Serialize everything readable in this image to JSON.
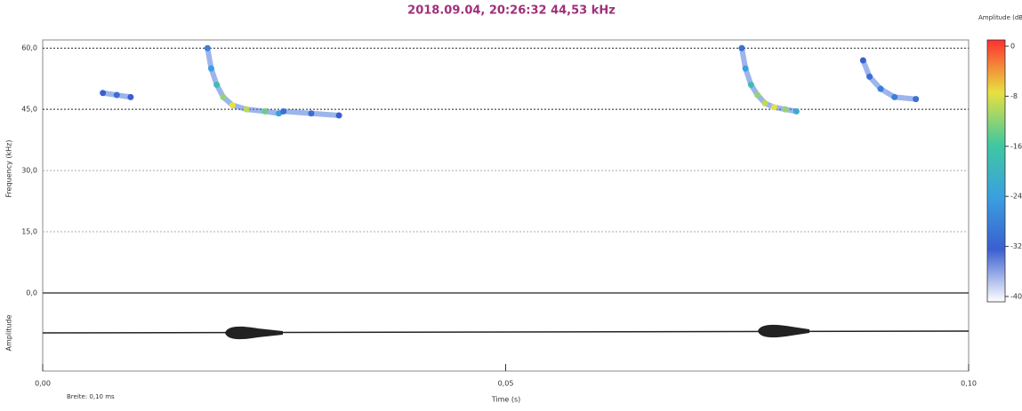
{
  "chart_data": {
    "type": "spectrogram",
    "title": "2018.09.04, 20:26:32 44,53 kHz",
    "x_label": "Time (s)",
    "y_label": "Frequency (kHz)",
    "amplitude_label": "Amplitude",
    "note": "Breite: 0,10 ms",
    "colorbar_label": "Amplitude (dB)",
    "xlim": [
      0,
      0.1
    ],
    "ylim": [
      0,
      62
    ],
    "xticks": [
      {
        "value": 0,
        "label": "0,00"
      },
      {
        "value": 0.05,
        "label": "0,05"
      },
      {
        "value": 0.1,
        "label": "0,10"
      }
    ],
    "yticks": [
      {
        "value": 0,
        "label": "0,0"
      },
      {
        "value": 15,
        "label": "15,0"
      },
      {
        "value": 30,
        "label": "30,0"
      },
      {
        "value": 45,
        "label": "45,0"
      },
      {
        "value": 60,
        "label": "60,0"
      }
    ],
    "clim": [
      -40,
      0
    ],
    "cticks": [
      0,
      -8,
      -16,
      -24,
      -32,
      -40
    ],
    "series": [
      {
        "x": [
          0.0065,
          0.008,
          0.0095
        ],
        "values": [
          49,
          48.5,
          48
        ],
        "db": [
          -32,
          -30,
          -32
        ]
      },
      {
        "x": [
          0.0178,
          0.0182,
          0.0188,
          0.0195,
          0.0205,
          0.022,
          0.024,
          0.0255,
          0.026,
          0.029,
          0.032
        ],
        "values": [
          60,
          55,
          51,
          48,
          46,
          45,
          44.5,
          44,
          44.5,
          44,
          43.5
        ],
        "db": [
          -28,
          -24,
          -18,
          -12,
          -8,
          -10,
          -14,
          -24,
          -30,
          -30,
          -32
        ]
      },
      {
        "x": [
          0.0755,
          0.0759,
          0.0765,
          0.0772,
          0.078,
          0.079,
          0.0802,
          0.0814
        ],
        "values": [
          60,
          55,
          51,
          48.5,
          46.5,
          45.5,
          45,
          44.5
        ],
        "db": [
          -30,
          -24,
          -18,
          -12,
          -10,
          -8,
          -12,
          -22
        ]
      },
      {
        "x": [
          0.0886,
          0.0893,
          0.0905,
          0.092,
          0.0943
        ],
        "values": [
          57,
          53,
          50,
          48,
          47.5
        ],
        "db": [
          -32,
          -30,
          -28,
          -28,
          -30
        ]
      }
    ]
  }
}
